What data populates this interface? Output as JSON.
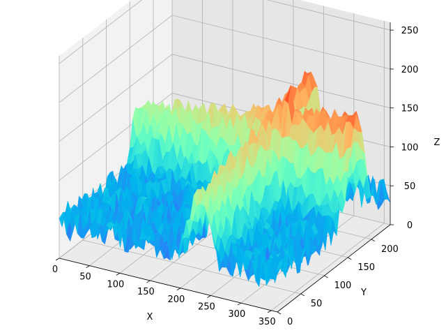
{
  "chart_data": {
    "type": "surface3d",
    "colormap": "rainbow",
    "xlabel": "X",
    "ylabel": "Y",
    "zlabel": "Z",
    "xlim": [
      0,
      360
    ],
    "ylim": [
      0,
      240
    ],
    "zlim": [
      0,
      260
    ],
    "xticks": [
      "0",
      "50",
      "100",
      "150",
      "200",
      "250",
      "300",
      "350"
    ],
    "yticks": [
      "0",
      "50",
      "100",
      "150",
      "200"
    ],
    "zticks": [
      "0",
      "50",
      "100",
      "150",
      "200",
      "250"
    ],
    "grid": true,
    "surface": {
      "x_count": 360,
      "y_count": 240,
      "baseline_z": 45,
      "ridge_along_x_at_y": 170,
      "ridge_along_y_at_x": 230,
      "ridge_max_z": 175,
      "peak": {
        "x": 250,
        "y": 165,
        "z": 230
      }
    }
  }
}
